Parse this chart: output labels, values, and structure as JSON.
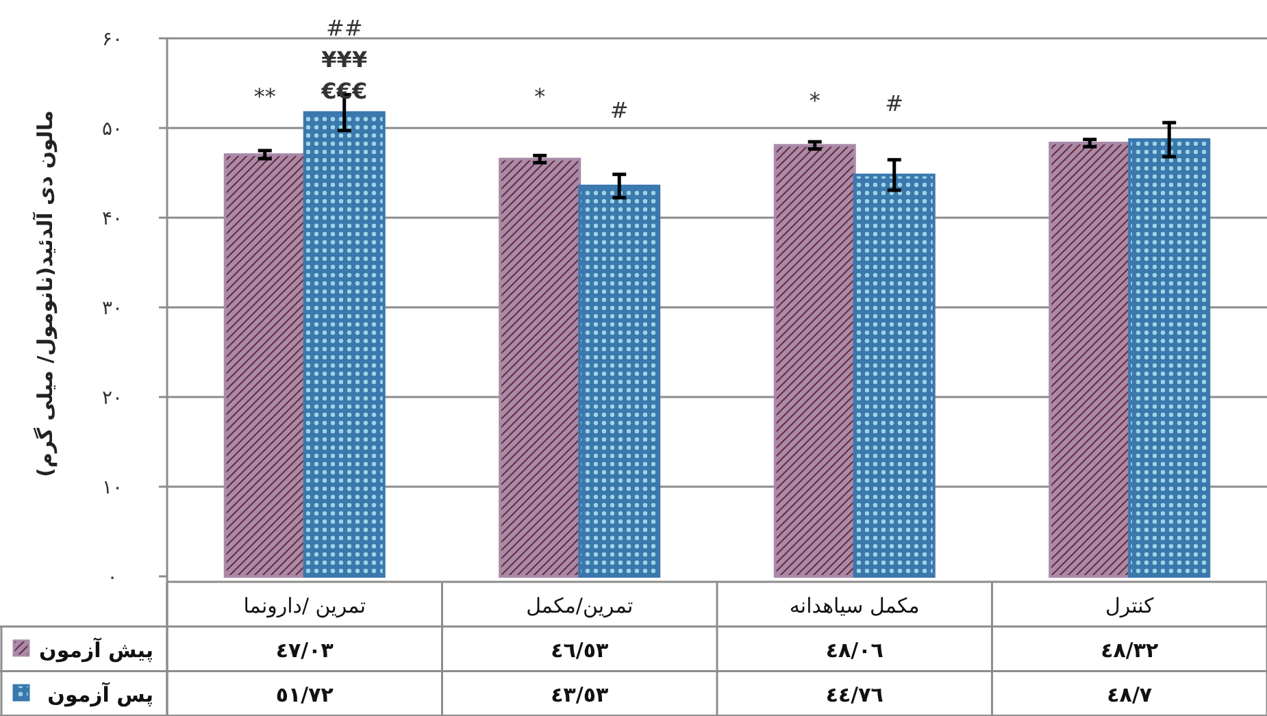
{
  "chart_data": {
    "type": "bar",
    "ylabel": "مالون دی آلدئید(نانومول/ میلی گرم)",
    "categories": [
      "تمرین /دارونما",
      "تمرین/مکمل",
      "مکمل سیاهدانه",
      "کنترل"
    ],
    "series": [
      {
        "name": "پیش آزمون",
        "color": "#a98aa8",
        "values": [
          47.03,
          46.53,
          48.06,
          48.32
        ],
        "errors": [
          0.45,
          0.4,
          0.4,
          0.4
        ],
        "value_labels": [
          "٤٧/٠٣",
          "٤٦/٥٣",
          "٤٨/٠٦",
          "٤٨/٣٢"
        ]
      },
      {
        "name": "پس آزمون",
        "color": "#3a78ad",
        "values": [
          51.72,
          43.53,
          44.76,
          48.7
        ],
        "errors": [
          2.0,
          1.3,
          1.7,
          1.9
        ],
        "value_labels": [
          "٥١/٧٢",
          "٤٣/٥٣",
          "٤٤/٧٦",
          "٤٨/٧"
        ]
      }
    ],
    "ylim": [
      0,
      60
    ],
    "yticks": [
      {
        "value": 0,
        "label": "۰"
      },
      {
        "value": 10,
        "label": "۱۰"
      },
      {
        "value": 20,
        "label": "۲۰"
      },
      {
        "value": 30,
        "label": "۳۰"
      },
      {
        "value": 40,
        "label": "۴۰"
      },
      {
        "value": 50,
        "label": "۵۰"
      },
      {
        "value": 60,
        "label": "۶۰"
      }
    ],
    "annotations": [
      "**",
      "€€€",
      "¥¥¥",
      "##",
      "*",
      "#",
      "*",
      "#"
    ],
    "grid": "y",
    "legend": "bottom left"
  }
}
